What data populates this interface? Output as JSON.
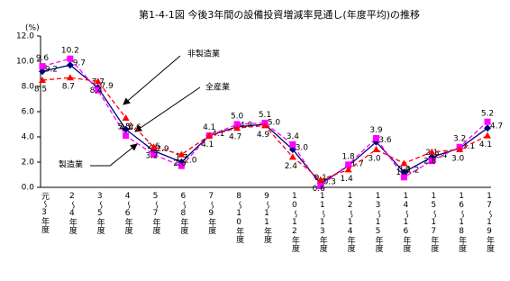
{
  "chart_data": {
    "type": "line",
    "title": "第1-4-1図 今後3年間の設備投資増減率見通し(年度平均)の推移",
    "y_label": "(%)",
    "categories": [
      "元～3年度",
      "2～4年度",
      "3～5年度",
      "4～6年度",
      "5～7年度",
      "6～8年度",
      "7～9年度",
      "8～10年度",
      "9～11年度",
      "10～12年度",
      "11～13年度",
      "12～14年度",
      "13～15年度",
      "14～16年度",
      "15～17年度",
      "16～18年度",
      "17～19年度"
    ],
    "series": [
      {
        "name": "全産業",
        "color": "#000080",
        "marker": "diamond",
        "dash": false,
        "values": [
          9.2,
          9.7,
          7.9,
          4.6,
          2.9,
          2.0,
          4.1,
          4.8,
          5.0,
          3.0,
          0.3,
          1.7,
          3.6,
          1.2,
          2.4,
          3.1,
          4.7
        ],
        "value_labels": [
          "9.2",
          "9.7",
          "7.9",
          "4.6",
          "2.9",
          "2.0",
          "4.1",
          "4.8",
          "5.0",
          "3.0",
          "0.3",
          "1.7",
          "3.6",
          "1.2",
          "2.4",
          "3.1",
          "4.7"
        ]
      },
      {
        "name": "非製造業",
        "color": "#ff00ff",
        "marker": "square",
        "dash": true,
        "values": [
          9.6,
          10.2,
          7.7,
          4.1,
          2.6,
          1.7,
          4.1,
          5.0,
          5.1,
          3.4,
          0.1,
          1.8,
          3.9,
          0.8,
          2.1,
          3.2,
          5.2
        ],
        "value_labels": [
          "9.6",
          "10.2",
          "7.7",
          "4.1",
          "2.6",
          "1.7",
          "4.1",
          "5.0",
          "5.1",
          "3.4",
          "0.1",
          "1.8",
          "3.9",
          "0.8",
          "2.1",
          "3.2",
          "5.2"
        ]
      },
      {
        "name": "製造業",
        "color": "#ff0000",
        "marker": "triangle",
        "dash": true,
        "values": [
          8.5,
          8.7,
          8.4,
          5.5,
          3.2,
          2.6,
          4.1,
          4.7,
          4.9,
          2.4,
          0.6,
          1.4,
          3.0,
          1.9,
          2.8,
          3.0,
          4.1
        ],
        "value_labels": [
          "8.5",
          "8.7",
          "8.4",
          "5.5",
          "3.2",
          "2.6",
          "4.1",
          "4.7",
          "4.9",
          "2.4",
          "0.6",
          "1.4",
          "3.0",
          "1.9",
          "2.8",
          "3.0",
          "4.1"
        ]
      }
    ],
    "ylim": [
      0,
      12
    ],
    "yticks": [
      {
        "value": 0,
        "label": "0.0"
      },
      {
        "value": 2,
        "label": "2.0"
      },
      {
        "value": 4,
        "label": "4.0"
      },
      {
        "value": 6,
        "label": "6.0"
      },
      {
        "value": 8,
        "label": "8.0"
      },
      {
        "value": 10,
        "label": "10.0"
      },
      {
        "value": 12,
        "label": "12.0"
      }
    ],
    "grid": false
  }
}
